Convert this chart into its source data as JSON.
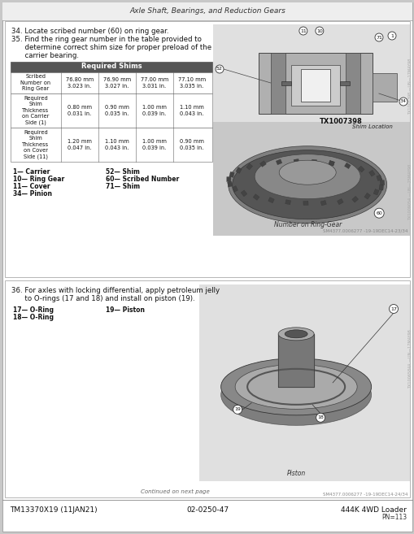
{
  "page_title": "Axle Shaft, Bearings, and Reduction Gears",
  "section1": {
    "step34": "34. Locate scribed number (60) on ring gear.",
    "step35_l1": "35. Find the ring gear number in the table provided to",
    "step35_l2": "      determine correct shim size for proper preload of the",
    "step35_l3": "      carrier bearing.",
    "table_header": "Required Shims",
    "row0": [
      "Scribed\nNumber on\nRing Gear",
      "76.80 mm\n3.023 in.",
      "76.90 mm\n3.027 in.",
      "77.00 mm\n3.031 in.",
      "77.10 mm\n3.035 in."
    ],
    "row1": [
      "Required\nShim\nThickness\non Carrier\nSide (1)",
      "0.80 mm\n0.031 in.",
      "0.90 mm\n0.035 in.",
      "1.00 mm\n0.039 in.",
      "1.10 mm\n0.043 in."
    ],
    "row2": [
      "Required\nShim\nThickness\non Cover\nSide (11)",
      "1.20 mm\n0.047 in.",
      "1.10 mm\n0.043 in.",
      "1.00 mm\n0.039 in.",
      "0.90 mm\n0.035 in."
    ],
    "leg1": [
      "1— Carrier",
      "10— Ring Gear",
      "11— Cover",
      "34— Pinion"
    ],
    "leg2": [
      "52— Shim",
      "60— Scribed Number",
      "71— Shim"
    ],
    "tx_label": "TX1007398",
    "shim_loc": "Shim Location",
    "caption1": "Number on Ring-Gear",
    "footnote1": "SM4377.0006277 -19-19DEC14-23/34",
    "side_label1": "TX1007398 —UN—17MAY98",
    "side_label2": "TX1009054 —UN—25MAY98"
  },
  "section2": {
    "step36_l1": "36. For axles with locking differential, apply petroleum jelly",
    "step36_l2": "      to O-rings (17 and 18) and install on piston (19).",
    "leg1": [
      "17— O-Ring",
      "18— O-Ring"
    ],
    "leg2": [
      "19— Piston"
    ],
    "caption": "Piston",
    "continued": "Continued on next page",
    "footnote": "SM4377.0006277 -19-19DEC14-24/34",
    "side_label": "TX1006584A —UN—17MAY98"
  },
  "footer_left": "TM13370X19 (11JAN21)",
  "footer_center": "02-0250-47",
  "footer_right": "444K 4WD Loader",
  "footer_sub": "PN=113"
}
